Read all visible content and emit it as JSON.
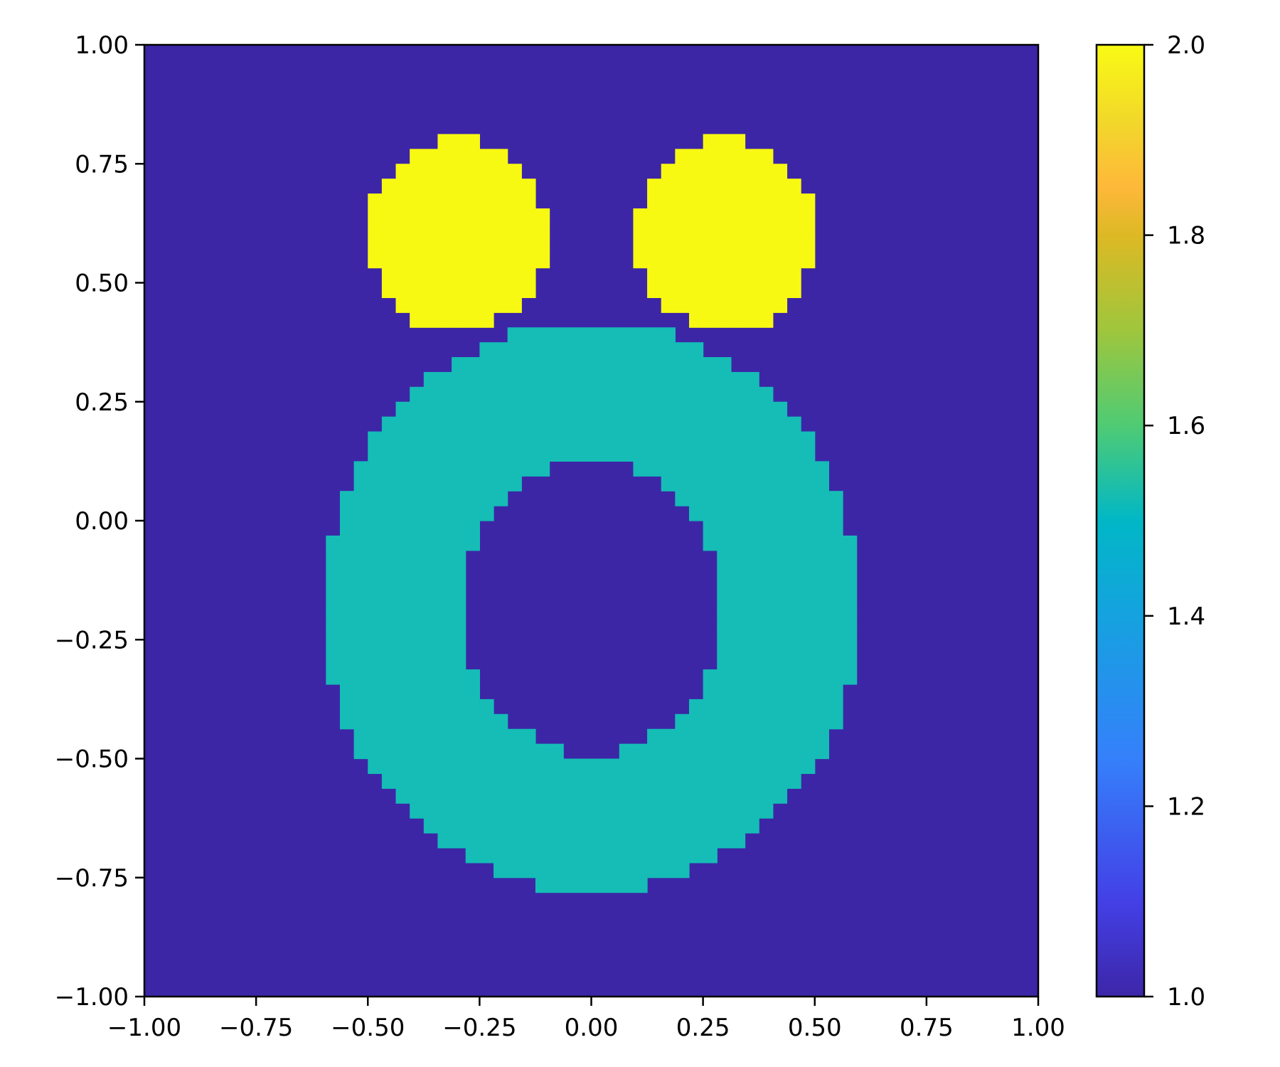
{
  "chart_data": {
    "type": "heatmap",
    "title": "",
    "xlabel": "",
    "ylabel": "",
    "xlim": [
      -1.0,
      1.0
    ],
    "ylim": [
      -1.0,
      1.0
    ],
    "grid": false,
    "x_ticks": [
      "−1.00",
      "−0.75",
      "−0.50",
      "−0.25",
      "0.00",
      "0.25",
      "0.50",
      "0.75",
      "1.00"
    ],
    "y_ticks": [
      "−1.00",
      "−0.75",
      "−0.50",
      "−0.25",
      "0.00",
      "0.25",
      "0.50",
      "0.75",
      "1.00"
    ],
    "grid_size": 64,
    "background_value": 1.0,
    "shapes": [
      {
        "name": "left-disk",
        "kind": "disk",
        "center": [
          -0.3,
          0.6
        ],
        "radius": 0.2,
        "value": 2.0
      },
      {
        "name": "right-disk",
        "kind": "disk",
        "center": [
          0.3,
          0.6
        ],
        "radius": 0.2,
        "value": 2.0
      },
      {
        "name": "ring",
        "kind": "annulus",
        "center": [
          0.0,
          -0.18
        ],
        "inner_radii": [
          0.29,
          0.31
        ],
        "outer_radii": [
          0.6,
          0.6
        ],
        "value": 1.5
      }
    ],
    "colorbar": {
      "min": 1.0,
      "max": 2.0,
      "ticks": [
        "1.0",
        "1.2",
        "1.4",
        "1.6",
        "1.8",
        "2.0"
      ],
      "stops": [
        {
          "v": 1.0,
          "color": "#3d26a8"
        },
        {
          "v": 1.1,
          "color": "#4340e6"
        },
        {
          "v": 1.25,
          "color": "#3580fb"
        },
        {
          "v": 1.4,
          "color": "#15a2df"
        },
        {
          "v": 1.5,
          "color": "#01b7c6"
        },
        {
          "v": 1.6,
          "color": "#4fcb74"
        },
        {
          "v": 1.7,
          "color": "#9fc63d"
        },
        {
          "v": 1.8,
          "color": "#ddb924"
        },
        {
          "v": 1.85,
          "color": "#feb83a"
        },
        {
          "v": 1.92,
          "color": "#f2d82a"
        },
        {
          "v": 2.0,
          "color": "#f9fa14"
        }
      ]
    },
    "colors": {
      "low": "#3c26a6",
      "mid": "#15bdb6",
      "high": "#f8f912"
    }
  }
}
